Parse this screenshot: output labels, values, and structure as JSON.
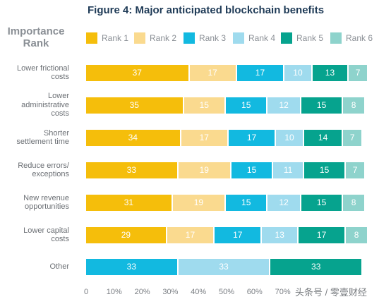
{
  "chart_data": {
    "type": "bar",
    "orientation": "horizontal",
    "stacked": true,
    "title": "Figure 4: Major anticipated blockchain benefits",
    "legend_title": [
      "Importance",
      "Rank"
    ],
    "legend_position": "top",
    "categories": [
      [
        "Lower frictional",
        "costs"
      ],
      [
        "Lower",
        "administrative",
        "costs"
      ],
      [
        "Shorter",
        "settlement time"
      ],
      [
        "Reduce errors/",
        "exceptions"
      ],
      [
        "New revenue",
        "opportunities"
      ],
      [
        "Lower capital",
        "costs"
      ],
      [
        "Other"
      ]
    ],
    "series": [
      {
        "name": "Rank 1",
        "color": "#F5BE0B",
        "values": [
          37,
          35,
          34,
          33,
          31,
          29,
          33
        ]
      },
      {
        "name": "Rank 2",
        "color": "#FADA8F",
        "values": [
          17,
          15,
          17,
          19,
          19,
          17,
          33
        ]
      },
      {
        "name": "Rank 3",
        "color": "#12B9E0",
        "values": [
          17,
          15,
          17,
          15,
          15,
          17,
          33
        ]
      },
      {
        "name": "Rank 4",
        "color": "#9FDBEE",
        "values": [
          10,
          12,
          10,
          11,
          12,
          13,
          null
        ]
      },
      {
        "name": "Rank 5",
        "color": "#06A38E",
        "values": [
          13,
          15,
          14,
          15,
          15,
          17,
          null
        ]
      },
      {
        "name": "Rank 6",
        "color": "#8ED3CC",
        "values": [
          7,
          8,
          7,
          7,
          8,
          8,
          null
        ]
      }
    ],
    "other_row_colors": [
      "#12B9E0",
      "#9FDBEE",
      "#06A38E"
    ],
    "x_ticks": [
      "0",
      "10%",
      "20%",
      "30%",
      "40%",
      "50%",
      "60%",
      "70%"
    ],
    "xlim": [
      0,
      100
    ],
    "grid": false
  },
  "watermark": "头条号 / 零壹财经"
}
